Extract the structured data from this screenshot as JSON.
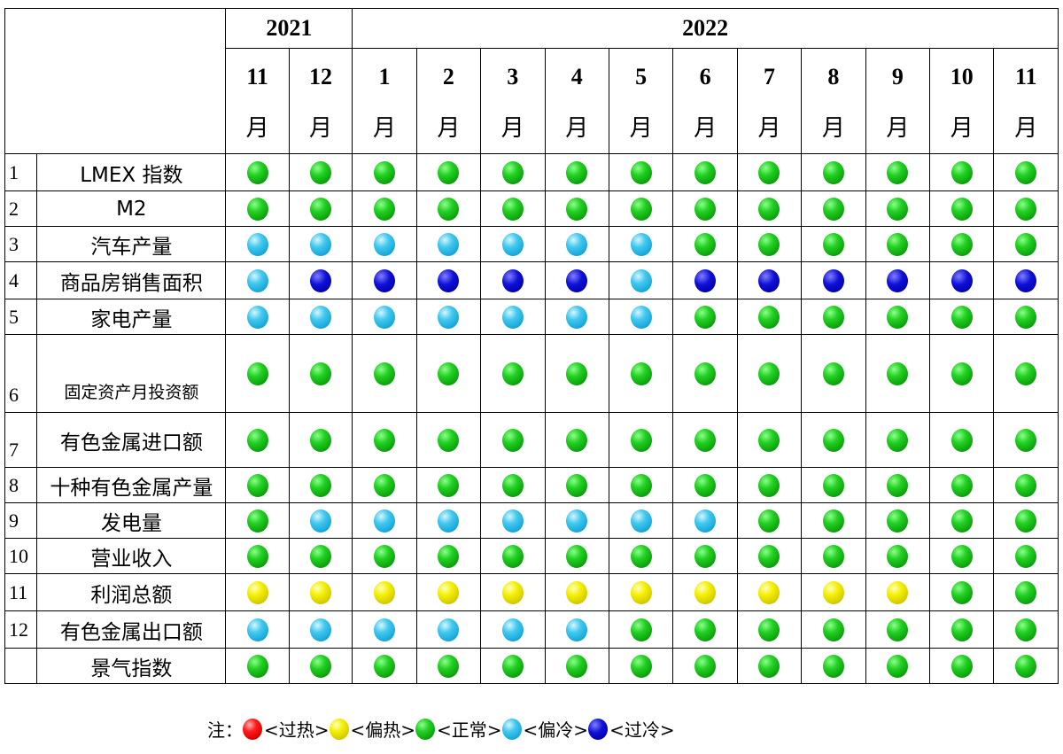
{
  "header": {
    "years": [
      "2021",
      "2022"
    ],
    "months": [
      "11",
      "12",
      "1",
      "2",
      "3",
      "4",
      "5",
      "6",
      "7",
      "8",
      "9",
      "10",
      "11"
    ],
    "month_unit": "月"
  },
  "rows": [
    {
      "num": "1",
      "label": "LMEX 指数",
      "states": [
        "g",
        "g",
        "g",
        "g",
        "g",
        "g",
        "g",
        "g",
        "g",
        "g",
        "g",
        "g",
        "g"
      ]
    },
    {
      "num": "2",
      "label": "M2",
      "states": [
        "g",
        "g",
        "g",
        "g",
        "g",
        "g",
        "g",
        "g",
        "g",
        "g",
        "g",
        "g",
        "g"
      ]
    },
    {
      "num": "3",
      "label": "汽车产量",
      "states": [
        "c",
        "c",
        "c",
        "c",
        "c",
        "c",
        "c",
        "g",
        "g",
        "g",
        "g",
        "g",
        "g"
      ]
    },
    {
      "num": "4",
      "label": "商品房销售面积",
      "states": [
        "c",
        "b",
        "b",
        "b",
        "b",
        "b",
        "c",
        "b",
        "b",
        "b",
        "b",
        "b",
        "b"
      ]
    },
    {
      "num": "5",
      "label": "家电产量",
      "states": [
        "c",
        "c",
        "c",
        "c",
        "c",
        "c",
        "c",
        "g",
        "g",
        "g",
        "g",
        "g",
        "g"
      ]
    },
    {
      "num": "6",
      "label": "固定资产月投资额",
      "states": [
        "g",
        "g",
        "g",
        "g",
        "g",
        "g",
        "g",
        "g",
        "g",
        "g",
        "g",
        "g",
        "g"
      ]
    },
    {
      "num": "7",
      "label": "有色金属进口额",
      "states": [
        "g",
        "g",
        "g",
        "g",
        "g",
        "g",
        "g",
        "g",
        "g",
        "g",
        "g",
        "g",
        "g"
      ]
    },
    {
      "num": "8",
      "label": "十种有色金属产量",
      "states": [
        "g",
        "g",
        "g",
        "g",
        "g",
        "g",
        "g",
        "g",
        "g",
        "g",
        "g",
        "g",
        "g"
      ]
    },
    {
      "num": "9",
      "label": "发电量",
      "states": [
        "g",
        "c",
        "c",
        "c",
        "c",
        "c",
        "c",
        "c",
        "g",
        "g",
        "g",
        "g",
        "g"
      ]
    },
    {
      "num": "10",
      "label": "营业收入",
      "states": [
        "g",
        "g",
        "g",
        "g",
        "g",
        "g",
        "g",
        "g",
        "g",
        "g",
        "g",
        "g",
        "g"
      ]
    },
    {
      "num": "11",
      "label": "利润总额",
      "states": [
        "y",
        "y",
        "y",
        "y",
        "y",
        "y",
        "y",
        "y",
        "y",
        "y",
        "y",
        "g",
        "g"
      ]
    },
    {
      "num": "12",
      "label": "有色金属出口额",
      "states": [
        "c",
        "c",
        "c",
        "c",
        "c",
        "c",
        "g",
        "g",
        "g",
        "g",
        "g",
        "g",
        "g"
      ]
    },
    {
      "num": "",
      "label": "景气指数",
      "states": [
        "g",
        "g",
        "g",
        "g",
        "g",
        "g",
        "g",
        "g",
        "g",
        "g",
        "g",
        "g",
        "g"
      ]
    }
  ],
  "colors": {
    "r": "#e00000",
    "y": "#f0e800",
    "g": "#18c018",
    "c": "#2ab8e6",
    "b": "#1010c8"
  },
  "legend": {
    "prefix": "注：",
    "items": [
      {
        "state": "r",
        "label": "<过热>"
      },
      {
        "state": "y",
        "label": "<偏热>"
      },
      {
        "state": "g",
        "label": "<正常>"
      },
      {
        "state": "c",
        "label": "<偏冷>"
      },
      {
        "state": "b",
        "label": "<过冷>"
      }
    ]
  }
}
